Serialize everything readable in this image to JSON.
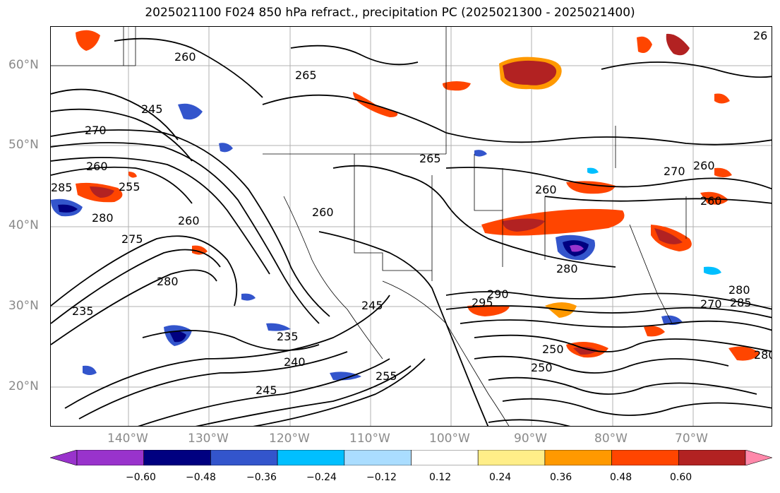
{
  "title": "2025021100 F024 850 hPa refract., precipitation PC (2025021300 - 2025021400)",
  "lat_labels": [
    "60°N",
    "50°N",
    "40°N",
    "30°N",
    "20°N"
  ],
  "lon_labels": [
    "140°W",
    "130°W",
    "120°W",
    "110°W",
    "100°W",
    "90°W",
    "80°W",
    "70°W"
  ],
  "contour_labels": [
    "265",
    "245",
    "270",
    "260",
    "255",
    "285",
    "280",
    "275",
    "280",
    "235",
    "240",
    "245",
    "260",
    "260",
    "265",
    "260",
    "245",
    "255",
    "250",
    "280",
    "290",
    "295",
    "250",
    "280",
    "270",
    "285",
    "280",
    "260",
    "260",
    "26",
    "270",
    "235",
    "260"
  ],
  "colorbar": {
    "ticks": [
      "−0.60",
      "−0.48",
      "−0.36",
      "−0.24",
      "−0.12",
      "0.12",
      "0.24",
      "0.36",
      "0.48",
      "0.60"
    ],
    "colors": {
      "under": "#9933cc",
      "bins": [
        "#9933cc",
        "#000080",
        "#3355cc",
        "#00bfff",
        "#aaddff",
        "#ffffff",
        "#ffee88",
        "#ff9900",
        "#ff4500",
        "#b22222"
      ],
      "over": "#ff88aa"
    }
  }
}
